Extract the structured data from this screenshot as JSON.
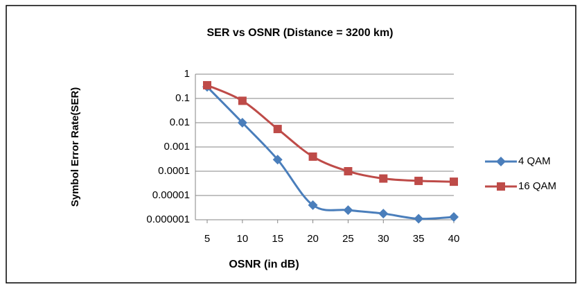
{
  "chart_data": {
    "type": "line",
    "title": "SER vs OSNR (Distance = 3200 km)",
    "x_label": "OSNR (in dB)",
    "y_label": "Symbol Error Rate(SER)",
    "x": [
      5,
      10,
      15,
      20,
      25,
      30,
      35,
      40
    ],
    "xlim": [
      5,
      40
    ],
    "xticks": [
      5,
      10,
      15,
      20,
      25,
      30,
      35,
      40
    ],
    "ylim": [
      1e-06,
      1
    ],
    "yticks": [
      1,
      0.1,
      0.01,
      0.001,
      0.0001,
      1e-05,
      1e-06
    ],
    "log_y": true,
    "grid": true,
    "legend_position": "right",
    "series": [
      {
        "name": "4 QAM",
        "color": "#4a7ebb",
        "marker": "diamond",
        "values": [
          0.3,
          0.01,
          0.0003,
          4e-06,
          2.5e-06,
          1.8e-06,
          1.1e-06,
          1.3e-06
        ]
      },
      {
        "name": "16 QAM",
        "color": "#be4b48",
        "marker": "square",
        "values": [
          0.35,
          0.08,
          0.0055,
          0.0004,
          0.0001,
          5e-05,
          4e-05,
          3.7e-05
        ]
      }
    ]
  }
}
